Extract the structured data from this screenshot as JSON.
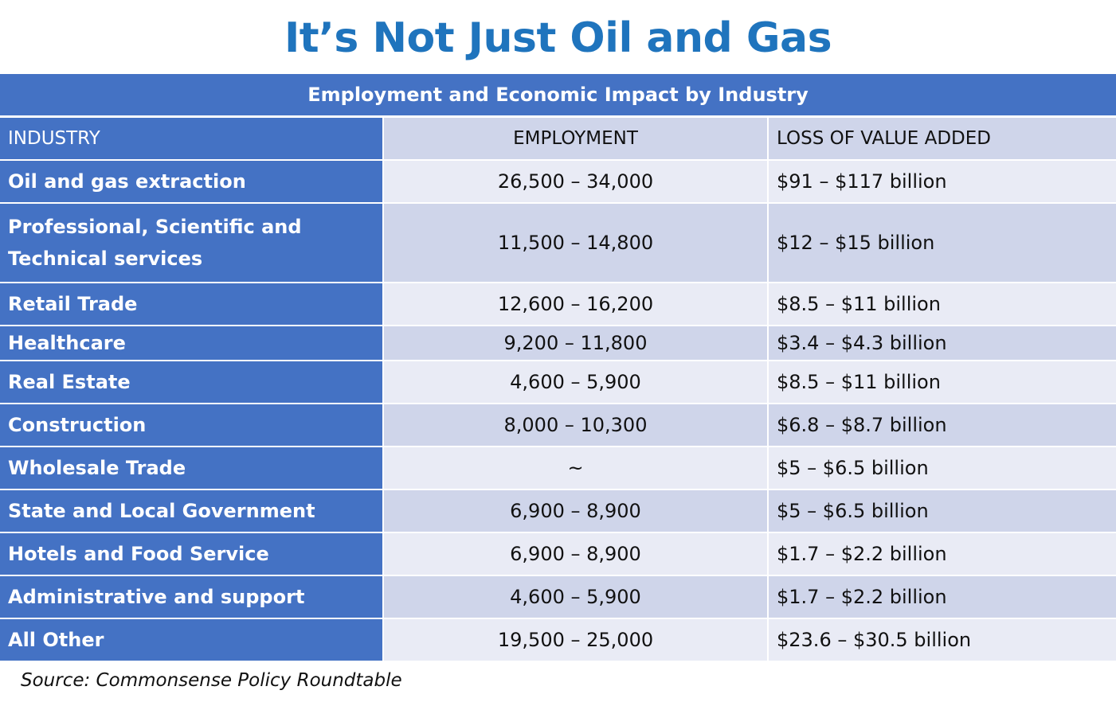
{
  "title": "It’s Not Just Oil and Gas",
  "table": {
    "caption": "Employment and Economic Impact by Industry",
    "headers": {
      "industry": "INDUSTRY",
      "employment": "EMPLOYMENT",
      "loss": "LOSS OF VALUE ADDED"
    },
    "rows": [
      {
        "industry": "Oil and gas extraction",
        "employment": "26,500 – 34,000",
        "loss": "$91 – $117 billion"
      },
      {
        "industry": "Professional, Scientific and Technical services",
        "employment": "11,500 – 14,800",
        "loss": "$12 – $15 billion"
      },
      {
        "industry": "Retail Trade",
        "employment": "12,600 – 16,200",
        "loss": "$8.5 – $11 billion"
      },
      {
        "industry": "Healthcare",
        "employment": "9,200 – 11,800",
        "loss": "$3.4 – $4.3 billion"
      },
      {
        "industry": "Real Estate",
        "employment": "4,600 – 5,900",
        "loss": "$8.5 – $11 billion"
      },
      {
        "industry": "Construction",
        "employment": "8,000 – 10,300",
        "loss": "$6.8 – $8.7 billion"
      },
      {
        "industry": "Wholesale Trade",
        "employment": "~",
        "loss": "$5 – $6.5 billion"
      },
      {
        "industry": "State and Local Government",
        "employment": "6,900 – 8,900",
        "loss": "$5 – $6.5 billion"
      },
      {
        "industry": "Hotels and Food Service",
        "employment": "6,900 – 8,900",
        "loss": "$1.7 – $2.2 billion"
      },
      {
        "industry": "Administrative and support",
        "employment": "4,600 – 5,900",
        "loss": "$1.7 – $2.2 billion"
      },
      {
        "industry": "All Other",
        "employment": "19,500 – 25,000",
        "loss": "$23.6 – $30.5 billion"
      }
    ]
  },
  "source": "Source: Commonsense Policy Roundtable",
  "colors": {
    "title": "#1f74bd",
    "header_blue": "#4472c4",
    "row_dark": "#cfd5ea",
    "row_light": "#e9ebf5"
  }
}
